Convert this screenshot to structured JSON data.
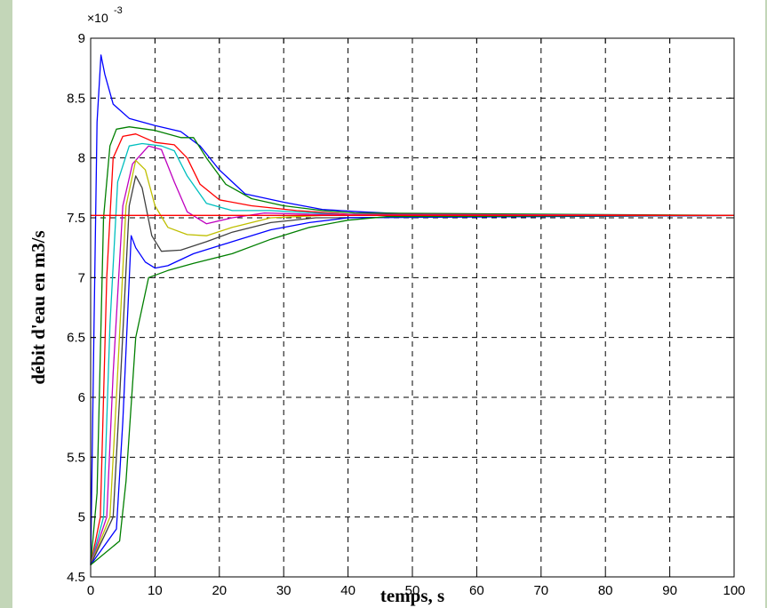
{
  "page": {
    "background": "#c3d6b8"
  },
  "chart_data": {
    "type": "line",
    "xlabel": "temps, s",
    "ylabel": "débit d'eau en m3/s",
    "y_multiplier": "×10",
    "y_multiplier_exponent": "-3",
    "xlim": [
      0,
      100
    ],
    "ylim": [
      4.5,
      9.0
    ],
    "x_ticks": [
      "0",
      "10",
      "20",
      "30",
      "40",
      "50",
      "60",
      "70",
      "80",
      "90",
      "100"
    ],
    "y_ticks": [
      "4.5",
      "5",
      "5.5",
      "6",
      "6.5",
      "7",
      "7.5",
      "8",
      "8.5",
      "9"
    ],
    "grid": true,
    "series": [
      {
        "color": "#0000ff",
        "points": [
          [
            0,
            4.6
          ],
          [
            0.5,
            6.5
          ],
          [
            1,
            8.3
          ],
          [
            1.6,
            8.86
          ],
          [
            2.2,
            8.7
          ],
          [
            3.5,
            8.45
          ],
          [
            6,
            8.33
          ],
          [
            10,
            8.27
          ],
          [
            14,
            8.22
          ],
          [
            17,
            8.1
          ],
          [
            20,
            7.9
          ],
          [
            24,
            7.7
          ],
          [
            30,
            7.63
          ],
          [
            36,
            7.57
          ],
          [
            42,
            7.55
          ],
          [
            46,
            7.54
          ],
          [
            51.5,
            7.53
          ],
          [
            52,
            7.52
          ],
          [
            100,
            7.52
          ]
        ]
      },
      {
        "color": "#007f00",
        "points": [
          [
            0,
            4.6
          ],
          [
            1,
            5.2
          ],
          [
            2,
            7.5
          ],
          [
            3,
            8.1
          ],
          [
            4,
            8.24
          ],
          [
            6,
            8.26
          ],
          [
            10,
            8.23
          ],
          [
            14,
            8.17
          ],
          [
            16,
            8.17
          ],
          [
            18,
            8.0
          ],
          [
            21,
            7.78
          ],
          [
            25,
            7.66
          ],
          [
            30,
            7.6
          ],
          [
            36,
            7.56
          ],
          [
            41,
            7.54
          ],
          [
            100,
            7.52
          ]
        ]
      },
      {
        "color": "#ff0000",
        "points": [
          [
            0,
            4.6
          ],
          [
            1.5,
            5.0
          ],
          [
            2.5,
            7.0
          ],
          [
            3.5,
            8.0
          ],
          [
            5,
            8.18
          ],
          [
            7,
            8.2
          ],
          [
            10,
            8.13
          ],
          [
            13,
            8.11
          ],
          [
            15,
            8.0
          ],
          [
            17,
            7.78
          ],
          [
            20,
            7.65
          ],
          [
            25,
            7.6
          ],
          [
            32,
            7.56
          ],
          [
            40,
            7.53
          ],
          [
            100,
            7.52
          ]
        ]
      },
      {
        "color": "#00bfbf",
        "points": [
          [
            0,
            4.6
          ],
          [
            2,
            5.0
          ],
          [
            3,
            6.6
          ],
          [
            4.2,
            7.8
          ],
          [
            6,
            8.1
          ],
          [
            8,
            8.12
          ],
          [
            11,
            8.1
          ],
          [
            13,
            8.06
          ],
          [
            15,
            7.85
          ],
          [
            18,
            7.62
          ],
          [
            22,
            7.56
          ],
          [
            28,
            7.56
          ],
          [
            35,
            7.54
          ],
          [
            42,
            7.52
          ],
          [
            100,
            7.52
          ]
        ]
      },
      {
        "color": "#bf00bf",
        "points": [
          [
            0,
            4.6
          ],
          [
            2.5,
            5.0
          ],
          [
            3.5,
            6.2
          ],
          [
            5,
            7.6
          ],
          [
            6.5,
            7.95
          ],
          [
            9,
            8.1
          ],
          [
            11,
            8.07
          ],
          [
            13,
            7.8
          ],
          [
            15,
            7.55
          ],
          [
            18,
            7.45
          ],
          [
            22,
            7.5
          ],
          [
            27,
            7.54
          ],
          [
            34,
            7.53
          ],
          [
            100,
            7.52
          ]
        ]
      },
      {
        "color": "#bfbf00",
        "points": [
          [
            0,
            4.6
          ],
          [
            3,
            5.0
          ],
          [
            4,
            6.0
          ],
          [
            5.5,
            7.6
          ],
          [
            7,
            7.98
          ],
          [
            8.5,
            7.9
          ],
          [
            10,
            7.6
          ],
          [
            12,
            7.42
          ],
          [
            15,
            7.36
          ],
          [
            18,
            7.35
          ],
          [
            22,
            7.42
          ],
          [
            28,
            7.5
          ],
          [
            36,
            7.52
          ],
          [
            100,
            7.52
          ]
        ]
      },
      {
        "color": "#404040",
        "points": [
          [
            0,
            4.6
          ],
          [
            3.5,
            5.0
          ],
          [
            4.5,
            6.0
          ],
          [
            6,
            7.6
          ],
          [
            7,
            7.85
          ],
          [
            8,
            7.75
          ],
          [
            9.5,
            7.35
          ],
          [
            11,
            7.22
          ],
          [
            14,
            7.23
          ],
          [
            18,
            7.3
          ],
          [
            22,
            7.38
          ],
          [
            28,
            7.46
          ],
          [
            35,
            7.5
          ],
          [
            100,
            7.52
          ]
        ]
      },
      {
        "color": "#0000ff",
        "points": [
          [
            0,
            4.6
          ],
          [
            4,
            4.9
          ],
          [
            5,
            5.8
          ],
          [
            6.3,
            7.35
          ],
          [
            7,
            7.25
          ],
          [
            8.5,
            7.13
          ],
          [
            10,
            7.08
          ],
          [
            12,
            7.1
          ],
          [
            16,
            7.2
          ],
          [
            22,
            7.3
          ],
          [
            28,
            7.4
          ],
          [
            34,
            7.46
          ],
          [
            40,
            7.5
          ],
          [
            100,
            7.52
          ]
        ]
      },
      {
        "color": "#007f00",
        "points": [
          [
            0,
            4.6
          ],
          [
            4.5,
            4.8
          ],
          [
            5.5,
            5.3
          ],
          [
            7,
            6.5
          ],
          [
            9,
            7.0
          ],
          [
            12,
            7.06
          ],
          [
            16,
            7.12
          ],
          [
            22,
            7.2
          ],
          [
            28,
            7.32
          ],
          [
            34,
            7.42
          ],
          [
            40,
            7.48
          ],
          [
            46,
            7.51
          ],
          [
            100,
            7.52
          ]
        ]
      },
      {
        "color": "#ff0000",
        "points": [
          [
            0,
            7.52
          ],
          [
            100,
            7.52
          ]
        ]
      }
    ]
  }
}
